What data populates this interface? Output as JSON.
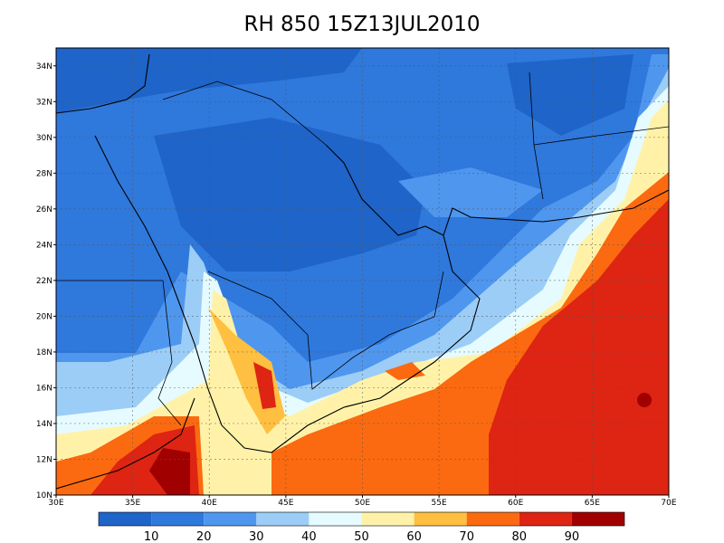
{
  "title": "RH 850 15Z13JUL2010",
  "map": {
    "xlim": [
      30,
      70
    ],
    "ylim": [
      10,
      35
    ],
    "xticks": [
      {
        "value": 30,
        "label": "30E"
      },
      {
        "value": 35,
        "label": "35E"
      },
      {
        "value": 40,
        "label": "40E"
      },
      {
        "value": 45,
        "label": "45E"
      },
      {
        "value": 50,
        "label": "50E"
      },
      {
        "value": 55,
        "label": "55E"
      },
      {
        "value": 60,
        "label": "60E"
      },
      {
        "value": 65,
        "label": "65E"
      },
      {
        "value": 70,
        "label": "70E"
      }
    ],
    "yticks": [
      {
        "value": 10,
        "label": "10N"
      },
      {
        "value": 12,
        "label": "12N"
      },
      {
        "value": 14,
        "label": "14N"
      },
      {
        "value": 16,
        "label": "16N"
      },
      {
        "value": 18,
        "label": "18N"
      },
      {
        "value": 20,
        "label": "20N"
      },
      {
        "value": 22,
        "label": "22N"
      },
      {
        "value": 24,
        "label": "24N"
      },
      {
        "value": 26,
        "label": "26N"
      },
      {
        "value": 28,
        "label": "28N"
      },
      {
        "value": 30,
        "label": "30N"
      },
      {
        "value": 32,
        "label": "32N"
      },
      {
        "value": 34,
        "label": "34N"
      }
    ]
  },
  "colorbar": {
    "levels": [
      10,
      20,
      30,
      40,
      50,
      60,
      70,
      80,
      90
    ],
    "colors": [
      "#1f64c8",
      "#2f78dc",
      "#4f96ee",
      "#9ccdf6",
      "#e6fbff",
      "#fff2a8",
      "#ffbf40",
      "#fb6a10",
      "#de2412",
      "#a00000"
    ]
  }
}
